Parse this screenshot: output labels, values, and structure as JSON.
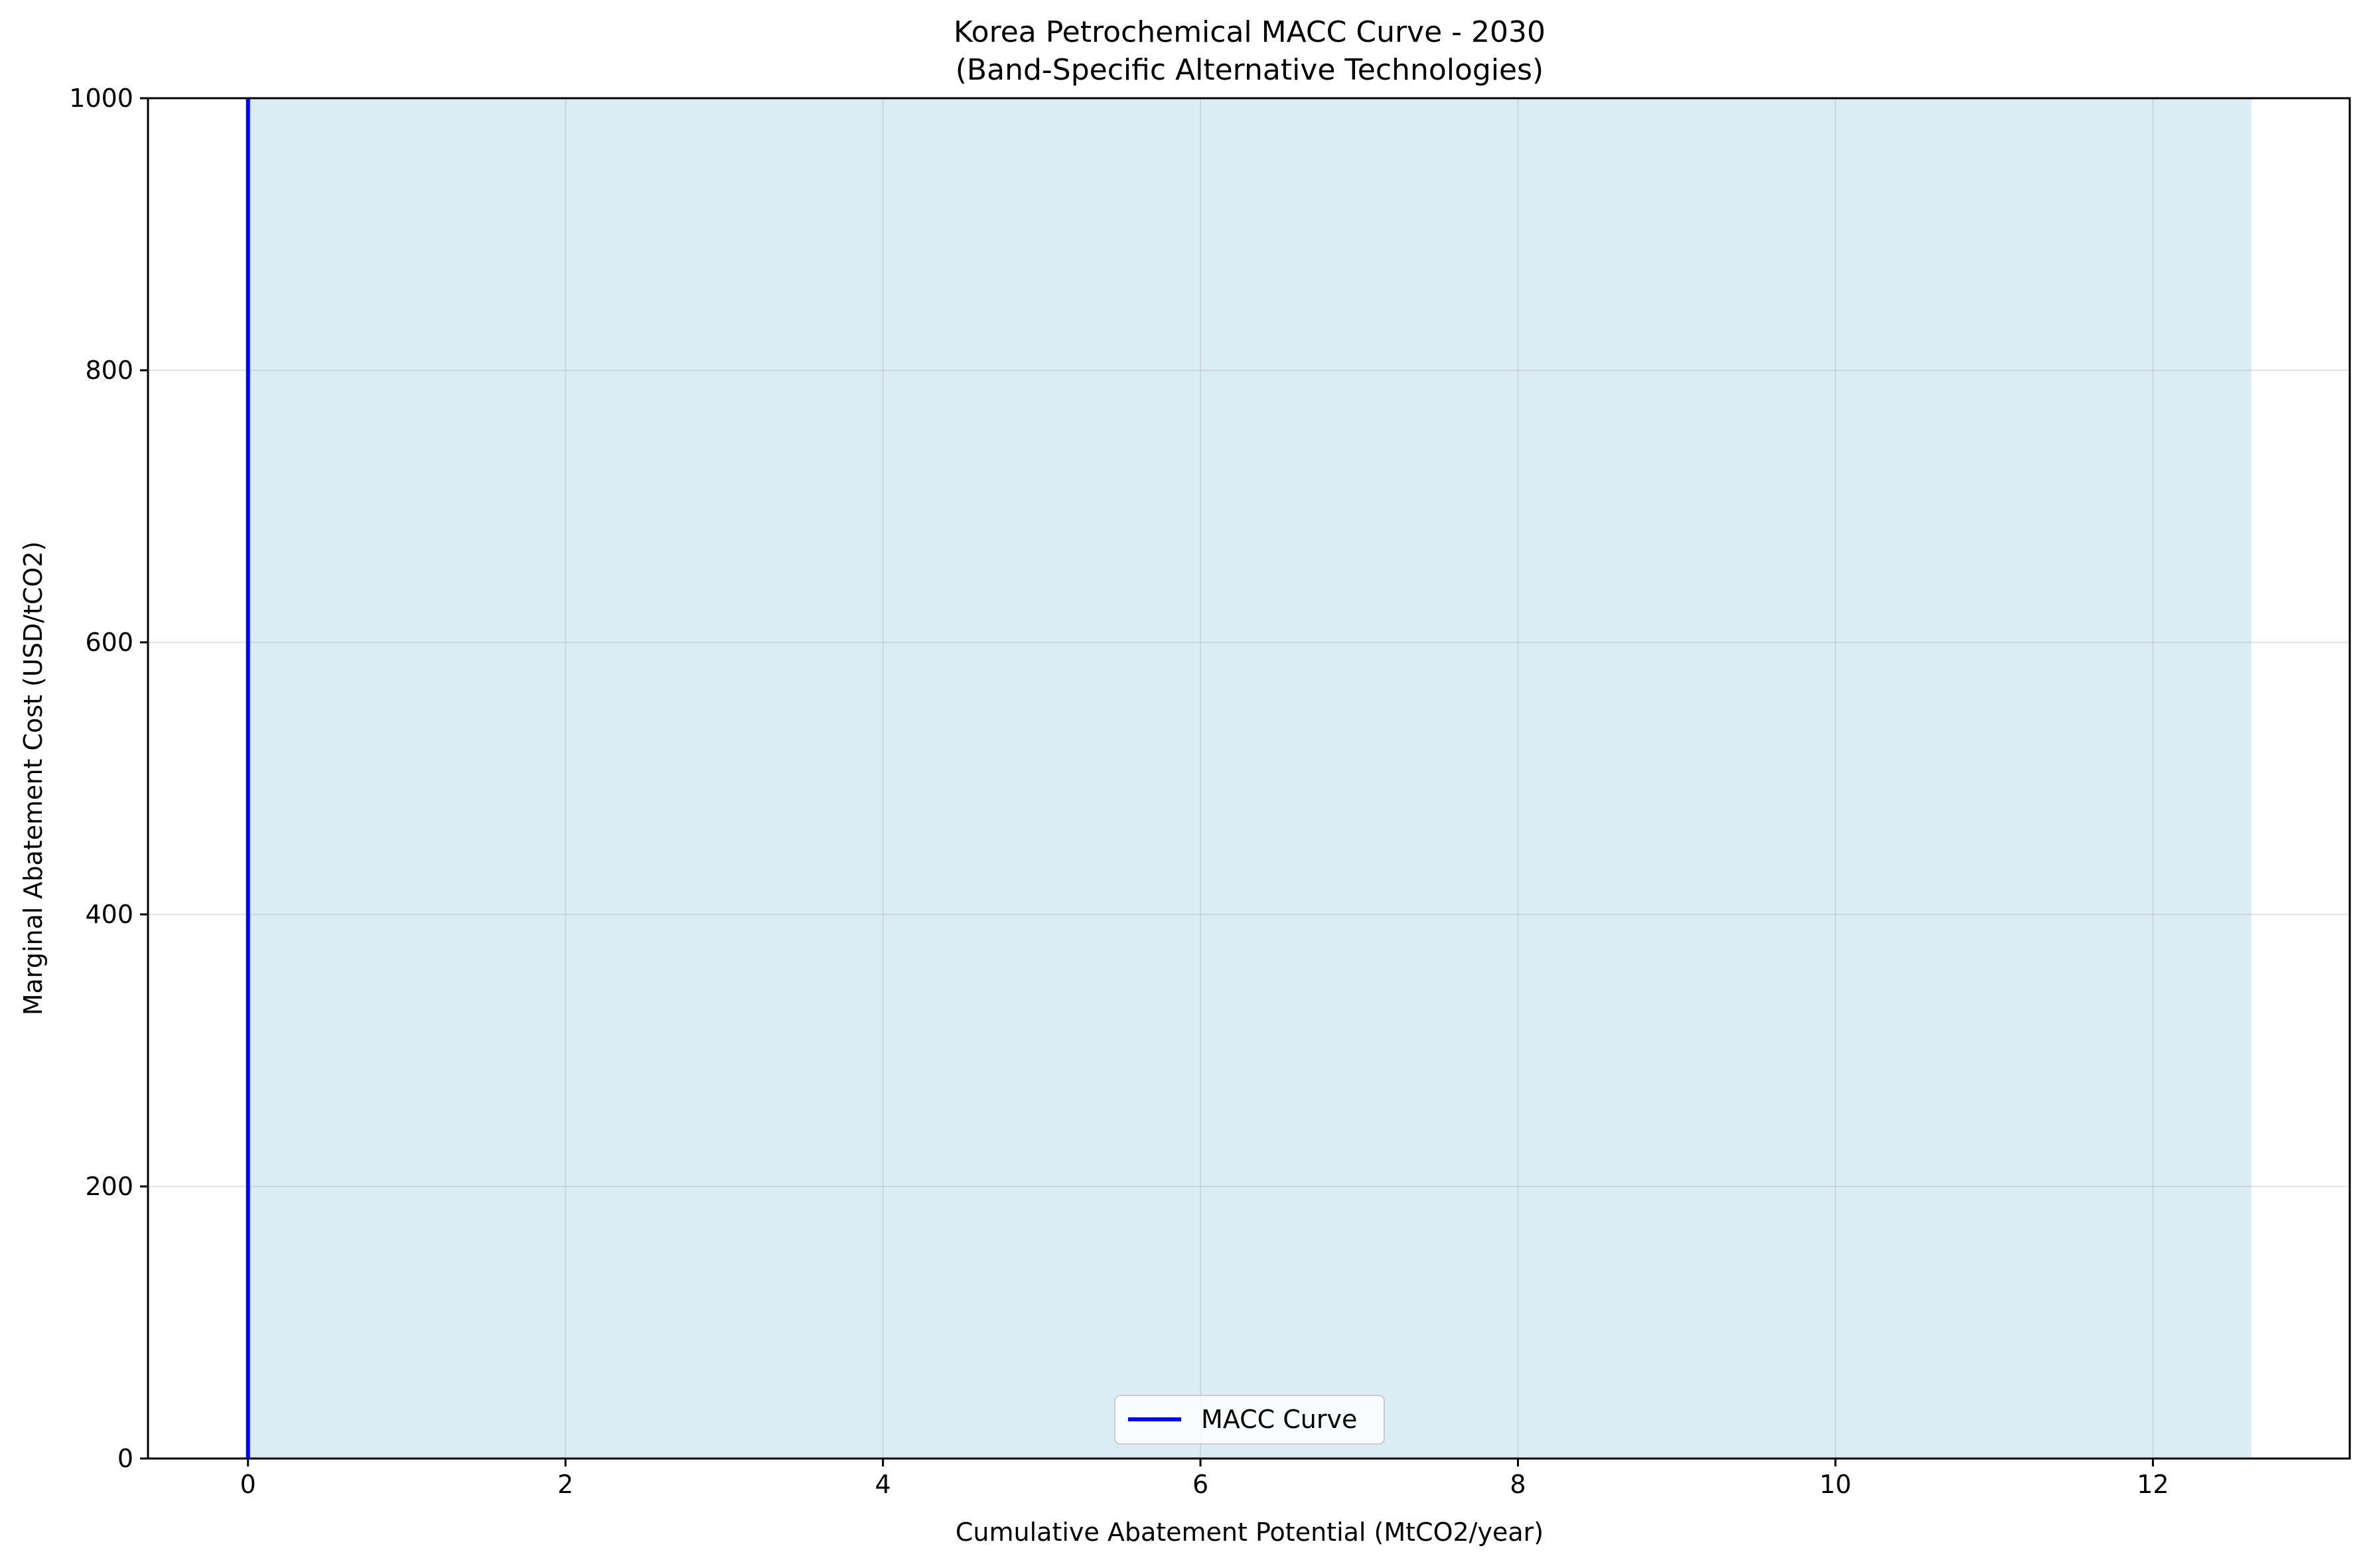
{
  "chart_data": {
    "type": "area",
    "title": "Korea Petrochemical MACC Curve - 2030",
    "subtitle": "(Band-Specific Alternative Technologies)",
    "xlabel": "Cumulative Abatement Potential (MtCO2/year)",
    "ylabel": "Marginal Abatement Cost (USD/tCO2)",
    "xlim": [
      -0.63,
      13.24
    ],
    "ylim": [
      0,
      1000
    ],
    "xticks": [
      0,
      2,
      4,
      6,
      8,
      10,
      12
    ],
    "yticks": [
      0,
      200,
      400,
      600,
      800,
      1000
    ],
    "grid": true,
    "legend": {
      "placement": "lower center",
      "entries": [
        "MACC Curve"
      ]
    },
    "series": [
      {
        "name": "MACC Curve",
        "kind": "line",
        "color": "#0000ff",
        "points": [
          [
            0,
            0
          ],
          [
            0,
            1000
          ]
        ]
      },
      {
        "kind": "fill",
        "color": "#add8e6",
        "x_range": [
          0,
          12.62
        ],
        "y_range": [
          0,
          1000
        ]
      }
    ]
  }
}
